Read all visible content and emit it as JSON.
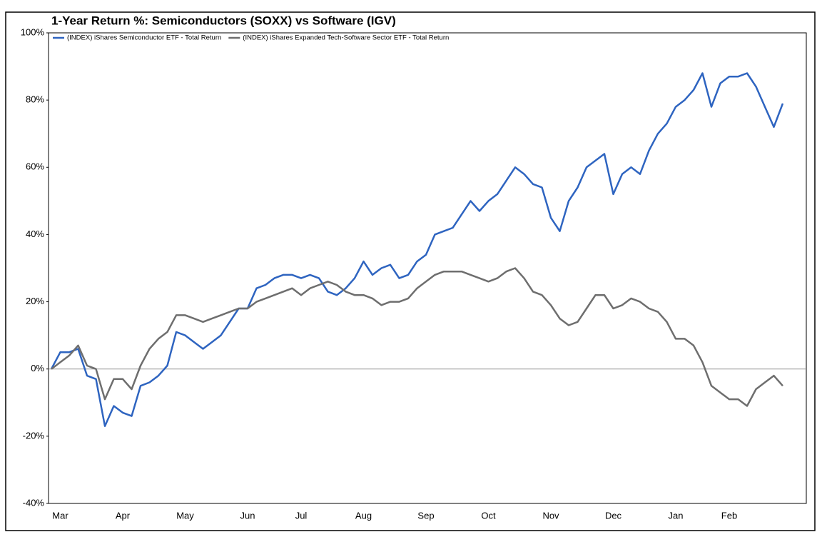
{
  "chart_data": {
    "type": "line",
    "title": "1-Year Return %: Semiconductors (SOXX) vs Software (IGV)",
    "categories": [
      null,
      "Mar",
      null,
      null,
      null,
      null,
      null,
      null,
      "Apr",
      null,
      null,
      null,
      null,
      null,
      null,
      "May",
      null,
      null,
      null,
      null,
      null,
      null,
      "Jun",
      null,
      null,
      null,
      null,
      null,
      "Jul",
      null,
      null,
      null,
      null,
      null,
      null,
      "Aug",
      null,
      null,
      null,
      null,
      null,
      null,
      "Sep",
      null,
      null,
      null,
      null,
      null,
      null,
      "Oct",
      null,
      null,
      null,
      null,
      null,
      null,
      "Nov",
      null,
      null,
      null,
      null,
      null,
      null,
      "Dec",
      null,
      null,
      null,
      null,
      null,
      null,
      "Jan",
      null,
      null,
      null,
      null,
      null,
      "Feb",
      null,
      null,
      null,
      null,
      null,
      null
    ],
    "series": [
      {
        "name": "(INDEX) iShares Semiconductor ETF - Total Return",
        "color": "#2e64c0",
        "values": [
          0,
          5,
          5,
          6,
          -2,
          -3,
          -17,
          -11,
          -13,
          -14,
          -5,
          -4,
          -2,
          1,
          11,
          10,
          8,
          6,
          8,
          10,
          14,
          18,
          18,
          24,
          25,
          27,
          28,
          28,
          27,
          28,
          27,
          23,
          22,
          24,
          27,
          32,
          28,
          30,
          31,
          27,
          28,
          32,
          34,
          40,
          41,
          42,
          46,
          50,
          47,
          50,
          52,
          56,
          60,
          58,
          55,
          54,
          45,
          41,
          50,
          54,
          60,
          62,
          64,
          52,
          58,
          60,
          58,
          65,
          70,
          73,
          78,
          80,
          83,
          88,
          78,
          85,
          87,
          87,
          88,
          84,
          78,
          72,
          79
        ]
      },
      {
        "name": "(INDEX) iShares Expanded Tech-Software Sector ETF - Total Return",
        "color": "#6e6e6e",
        "values": [
          0,
          2,
          4,
          7,
          1,
          0,
          -9,
          -3,
          -3,
          -6,
          1,
          6,
          9,
          11,
          16,
          16,
          15,
          14,
          15,
          16,
          17,
          18,
          18,
          20,
          21,
          22,
          23,
          24,
          22,
          24,
          25,
          26,
          25,
          23,
          22,
          22,
          21,
          19,
          20,
          20,
          21,
          24,
          26,
          28,
          29,
          29,
          29,
          28,
          27,
          26,
          27,
          29,
          30,
          27,
          23,
          22,
          19,
          15,
          13,
          14,
          18,
          22,
          22,
          18,
          19,
          21,
          20,
          18,
          17,
          14,
          9,
          9,
          7,
          2,
          -5,
          -7,
          -9,
          -9,
          -11,
          -6,
          -4,
          -2,
          -5
        ]
      }
    ],
    "ylim": [
      -40,
      100
    ],
    "yticks": [
      {
        "value": -40,
        "label": "-40%"
      },
      {
        "value": -20,
        "label": "-20%"
      },
      {
        "value": 0,
        "label": "0%"
      },
      {
        "value": 20,
        "label": "20%"
      },
      {
        "value": 40,
        "label": "40%"
      },
      {
        "value": 60,
        "label": "60%"
      },
      {
        "value": 80,
        "label": "80%"
      },
      {
        "value": 100,
        "label": "100%"
      }
    ],
    "grid": false,
    "legend": "top-left"
  }
}
